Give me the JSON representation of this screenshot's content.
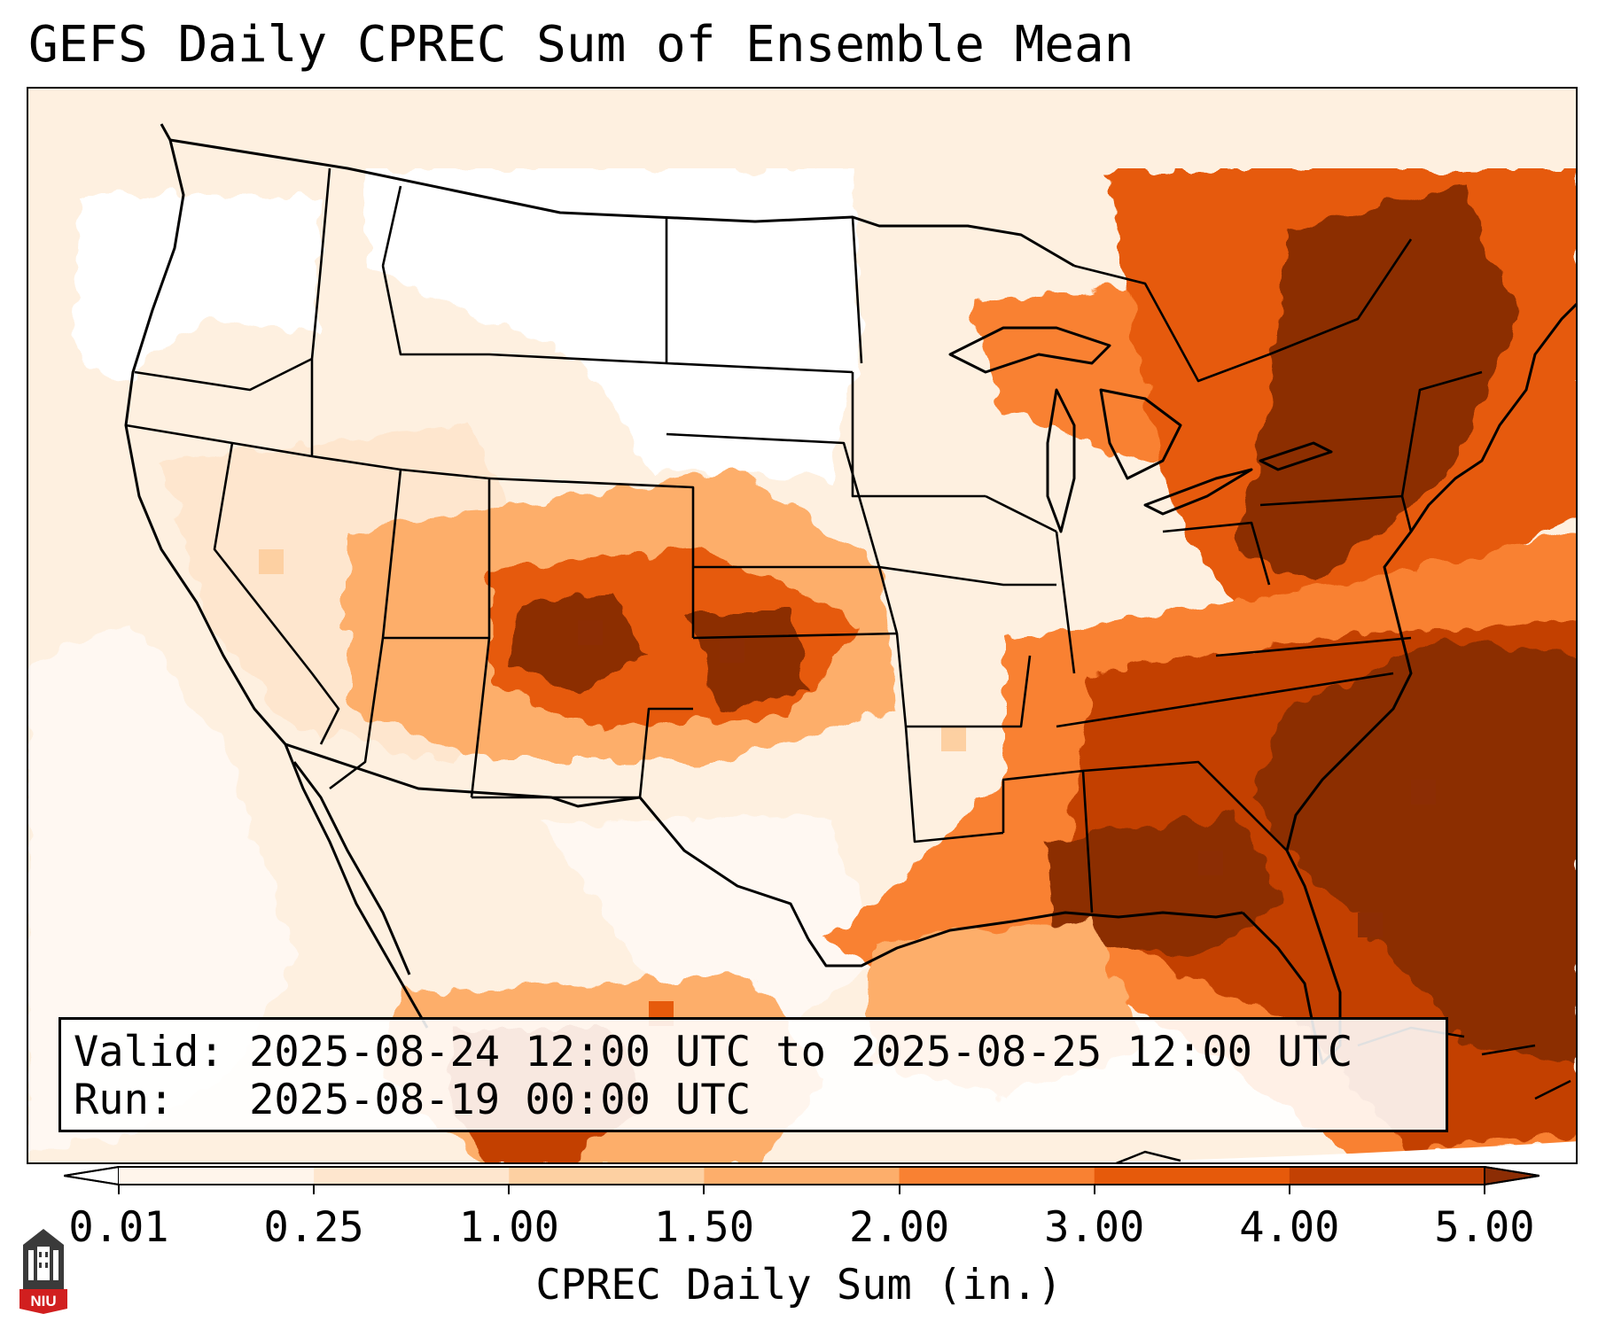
{
  "title": "GEFS Daily CPREC Sum of Ensemble Mean",
  "info": {
    "valid_line": "Valid: 2025-08-24 12:00 UTC to 2025-08-25 12:00 UTC",
    "run_line": "Run:   2025-08-19 00:00 UTC"
  },
  "colorbar": {
    "label": "CPREC Daily Sum (in.)",
    "ticks": [
      "0.01",
      "0.25",
      "1.00",
      "1.50",
      "2.00",
      "3.00",
      "4.00",
      "5.00"
    ],
    "colors": [
      "#fff5eb",
      "#fee6ce",
      "#fdd0a2",
      "#fdae6b",
      "#f98132",
      "#e65a0b",
      "#c34103",
      "#8c2d04"
    ],
    "under_color": "#ffffff",
    "over_color": "#8c2d04",
    "extend": "both"
  },
  "logo": {
    "text": "NIU",
    "name": "niu-logo"
  },
  "map": {
    "region": "Continental United States",
    "boundaries": [
      "coastlines",
      "state-borders",
      "country-borders"
    ]
  }
}
